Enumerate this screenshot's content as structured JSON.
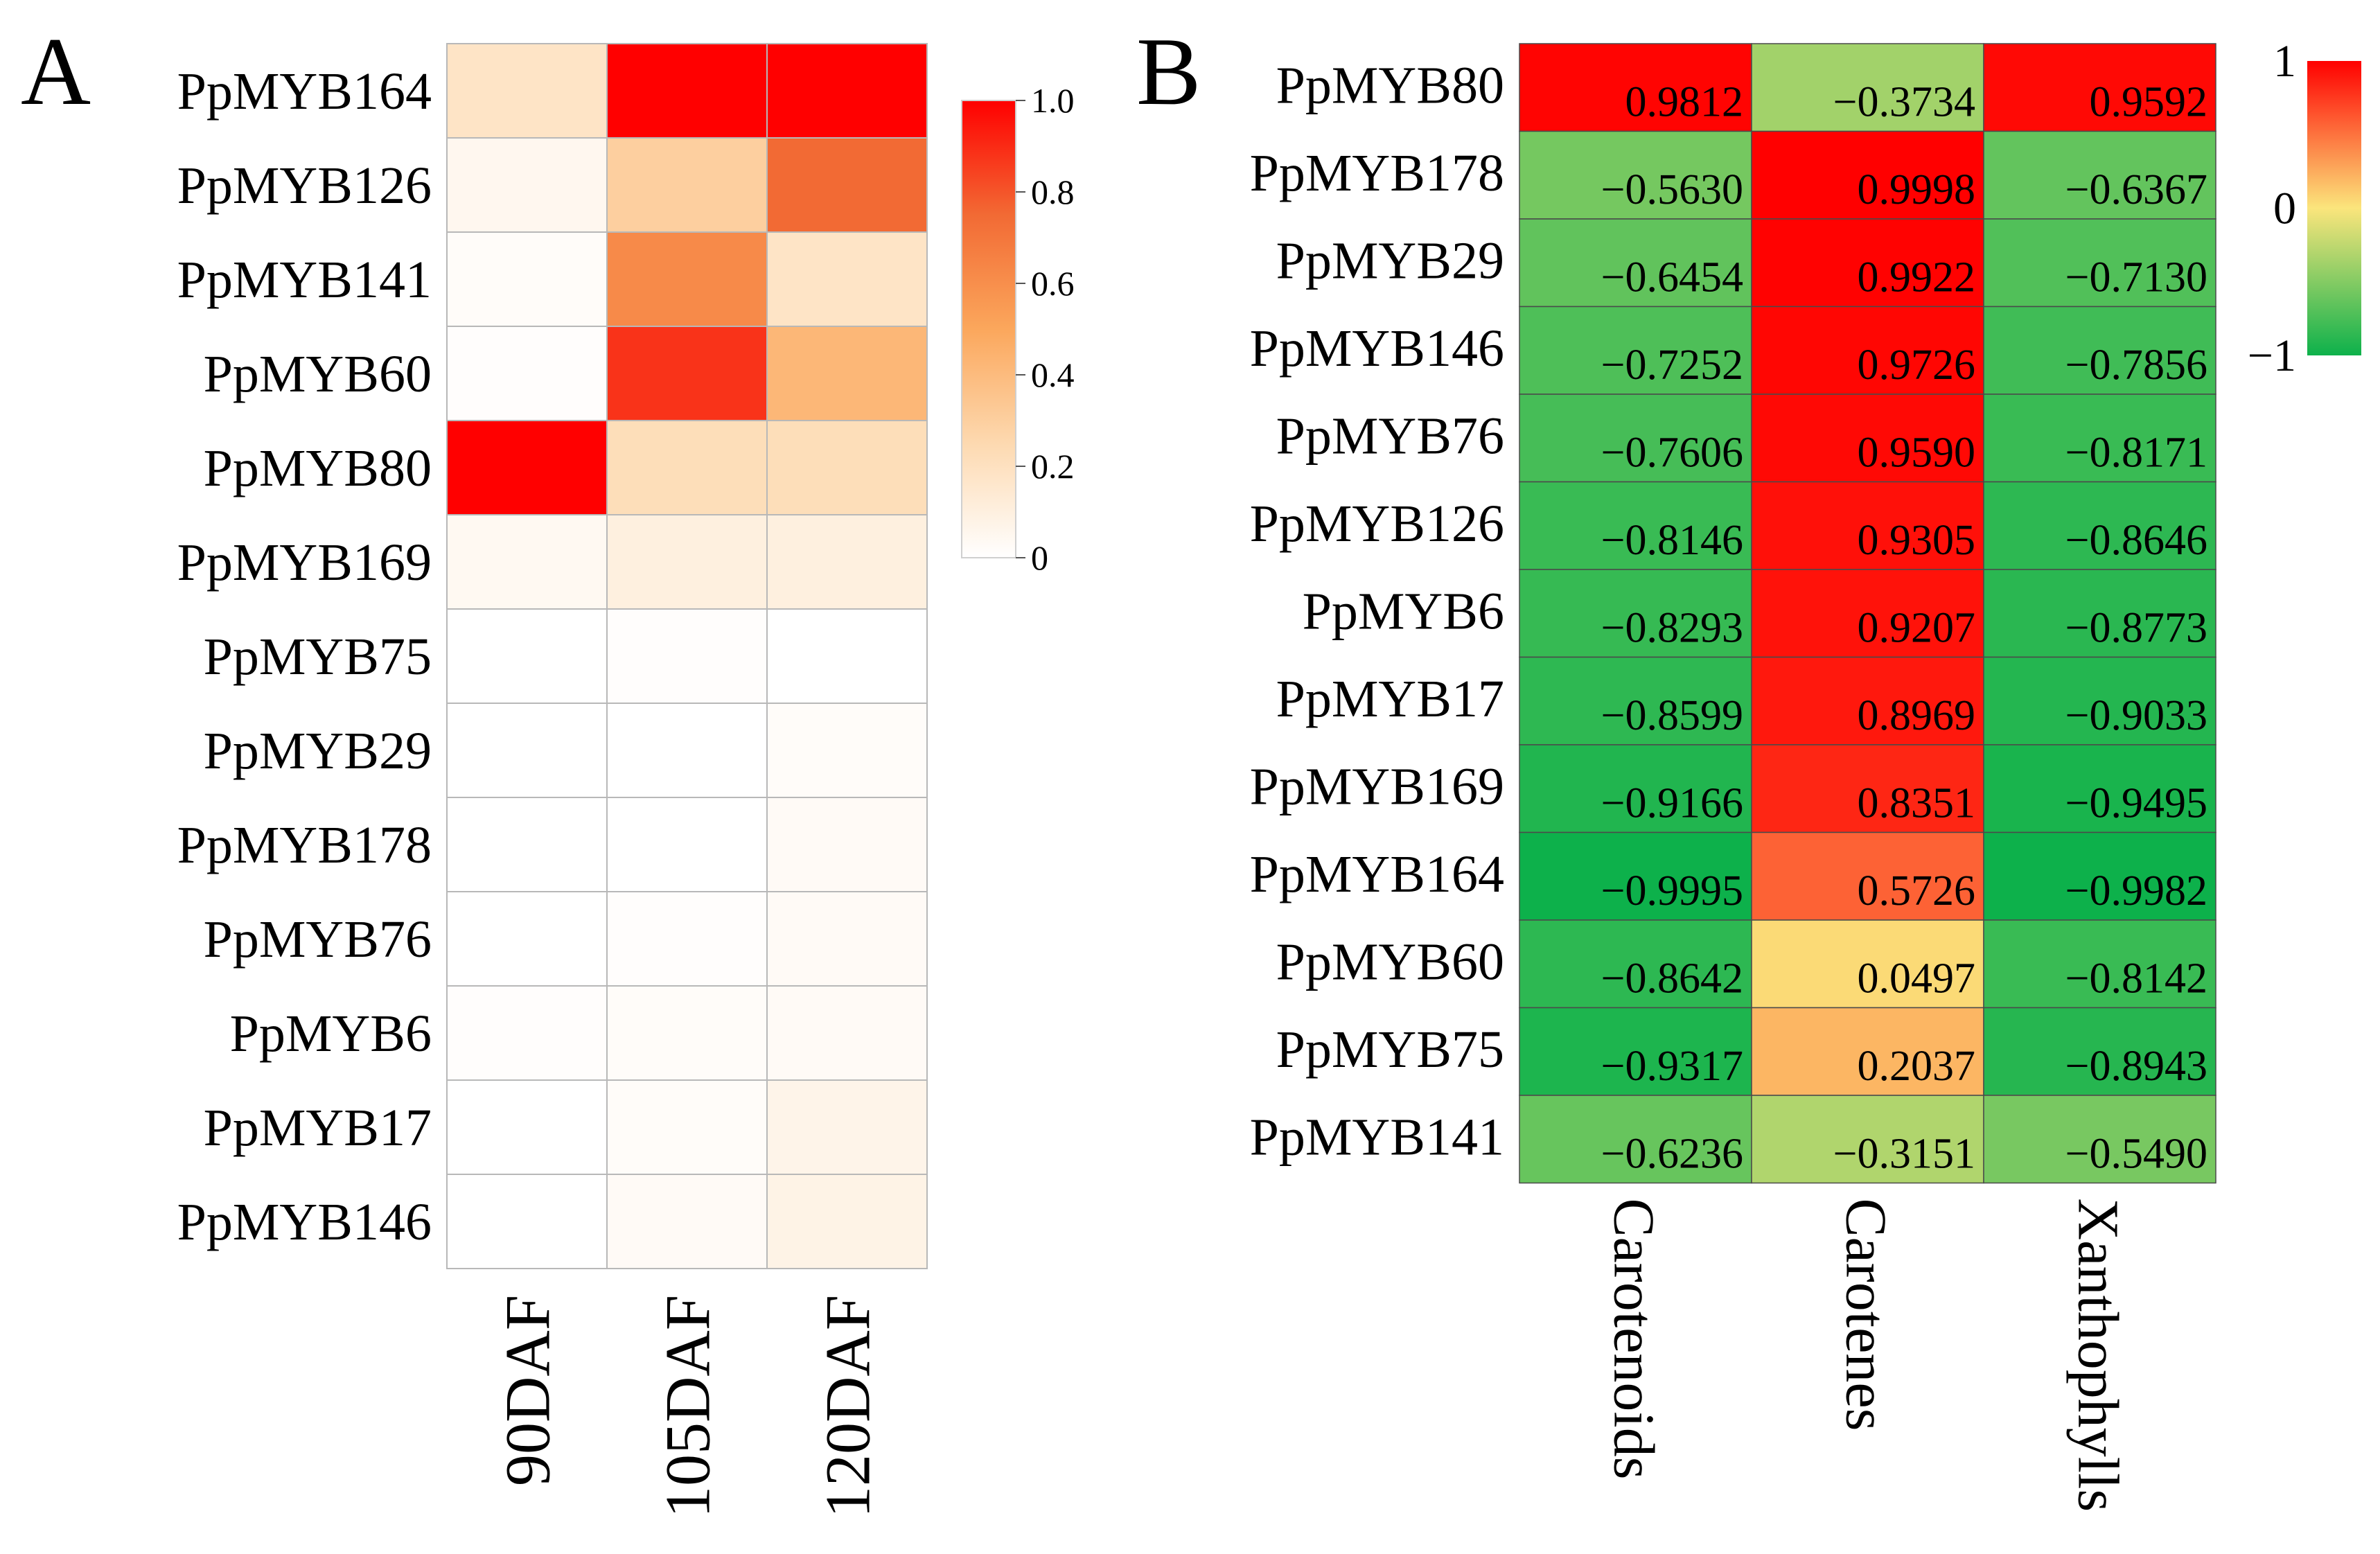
{
  "chart_data": [
    {
      "panel": "A",
      "type": "heatmap",
      "title": "",
      "rows": [
        "PpMYB164",
        "PpMYB126",
        "PpMYB141",
        "PpMYB60",
        "PpMYB80",
        "PpMYB169",
        "PpMYB75",
        "PpMYB29",
        "PpMYB178",
        "PpMYB76",
        "PpMYB6",
        "PpMYB17",
        "PpMYB146"
      ],
      "columns": [
        "90DAF",
        "105DAF",
        "120DAF"
      ],
      "values": [
        [
          0.18,
          1.0,
          1.0
        ],
        [
          0.05,
          0.3,
          0.75
        ],
        [
          0.02,
          0.62,
          0.18
        ],
        [
          0.01,
          0.88,
          0.42
        ],
        [
          1.0,
          0.22,
          0.22
        ],
        [
          0.04,
          0.1,
          0.1
        ],
        [
          0.0,
          0.01,
          0.0
        ],
        [
          0.0,
          0.0,
          0.02
        ],
        [
          0.0,
          0.0,
          0.03
        ],
        [
          0.0,
          0.01,
          0.03
        ],
        [
          0.01,
          0.02,
          0.03
        ],
        [
          0.0,
          0.02,
          0.07
        ],
        [
          0.0,
          0.03,
          0.08
        ]
      ],
      "colorbar": {
        "range": [
          0,
          1.0
        ],
        "ticks": [
          "0",
          "0.2",
          "0.4",
          "0.6",
          "0.8",
          "1.0"
        ],
        "colors": [
          "#ffffff",
          "#fdd9b0",
          "#fba75c",
          "#f26a34",
          "#ff0000"
        ]
      },
      "legend_position": "right"
    },
    {
      "panel": "B",
      "type": "heatmap",
      "title": "",
      "rows": [
        "PpMYB80",
        "PpMYB178",
        "PpMYB29",
        "PpMYB146",
        "PpMYB76",
        "PpMYB126",
        "PpMYB6",
        "PpMYB17",
        "PpMYB169",
        "PpMYB164",
        "PpMYB60",
        "PpMYB75",
        "PpMYB141"
      ],
      "columns": [
        "Carotenoids",
        "Carotenes",
        "Xanthophylls"
      ],
      "values": [
        [
          0.9812,
          -0.3734,
          0.9592
        ],
        [
          -0.563,
          0.9998,
          -0.6367
        ],
        [
          -0.6454,
          0.9922,
          -0.713
        ],
        [
          -0.7252,
          0.9726,
          -0.7856
        ],
        [
          -0.7606,
          0.959,
          -0.8171
        ],
        [
          -0.8146,
          0.9305,
          -0.8646
        ],
        [
          -0.8293,
          0.9207,
          -0.8773
        ],
        [
          -0.8599,
          0.8969,
          -0.9033
        ],
        [
          -0.9166,
          0.8351,
          -0.9495
        ],
        [
          -0.9995,
          0.5726,
          -0.9982
        ],
        [
          -0.8642,
          0.0497,
          -0.8142
        ],
        [
          -0.9317,
          0.2037,
          -0.8943
        ],
        [
          -0.6236,
          -0.3151,
          -0.549
        ]
      ],
      "value_labels": [
        [
          "0.9812",
          "−0.3734",
          "0.9592"
        ],
        [
          "−0.5630",
          "0.9998",
          "−0.6367"
        ],
        [
          "−0.6454",
          "0.9922",
          "−0.7130"
        ],
        [
          "−0.7252",
          "0.9726",
          "−0.7856"
        ],
        [
          "−0.7606",
          "0.9590",
          "−0.8171"
        ],
        [
          "−0.8146",
          "0.9305",
          "−0.8646"
        ],
        [
          "−0.8293",
          "0.9207",
          "−0.8773"
        ],
        [
          "−0.8599",
          "0.8969",
          "−0.9033"
        ],
        [
          "−0.9166",
          "0.8351",
          "−0.9495"
        ],
        [
          "−0.9995",
          "0.5726",
          "−0.9982"
        ],
        [
          "−0.8642",
          "0.0497",
          "−0.8142"
        ],
        [
          "−0.9317",
          "0.2037",
          "−0.8943"
        ],
        [
          "−0.6236",
          "−0.3151",
          "−0.5490"
        ]
      ],
      "colorbar": {
        "range": [
          -1,
          1
        ],
        "ticks": [
          "−1",
          "0",
          "1"
        ],
        "colors": [
          "#0db14b",
          "#fbe57c",
          "#ff0000"
        ]
      },
      "legend_position": "right"
    }
  ]
}
